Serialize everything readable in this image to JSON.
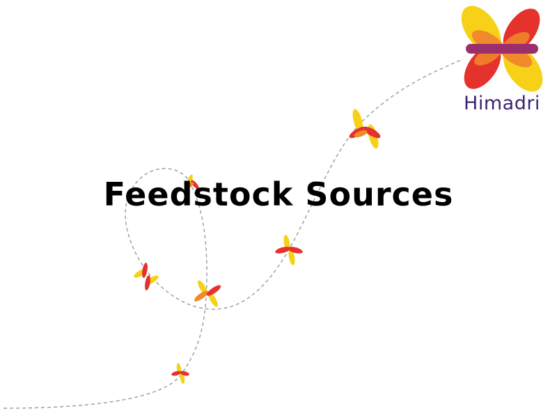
{
  "slide": {
    "title": "Feedstock Sources"
  },
  "brand": {
    "name": "Himadri",
    "colors": {
      "red": "#e5322d",
      "orange": "#f08a2b",
      "yellow": "#f7d117",
      "purple": "#9b2f6e",
      "wordmark": "#3a2470"
    }
  },
  "decor": {
    "path_style": "dashed-gray",
    "icon": "butterfly-icon"
  }
}
